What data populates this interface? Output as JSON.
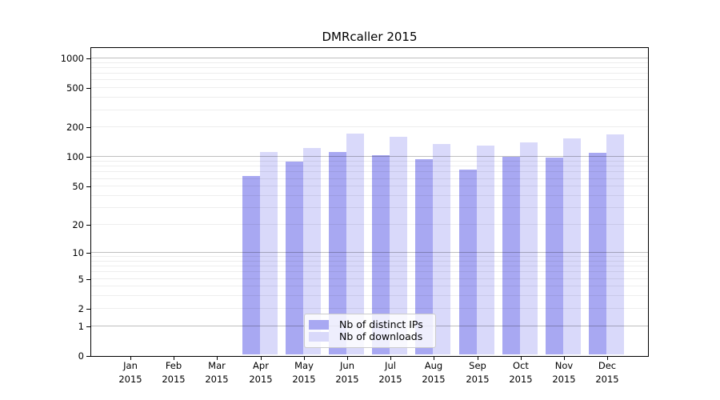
{
  "title": "DMRcaller 2015",
  "legend": {
    "items": [
      {
        "label": "Nb of distinct IPs",
        "color": "#a8a8f2"
      },
      {
        "label": "Nb of downloads",
        "color": "#d9d9fa"
      }
    ]
  },
  "chart_data": {
    "type": "bar",
    "title": "DMRcaller 2015",
    "categories": [
      "Jan 2015",
      "Feb 2015",
      "Mar 2015",
      "Apr 2015",
      "May 2015",
      "Jun 2015",
      "Jul 2015",
      "Aug 2015",
      "Sep 2015",
      "Oct 2015",
      "Nov 2015",
      "Dec 2015"
    ],
    "months": [
      "Jan",
      "Feb",
      "Mar",
      "Apr",
      "May",
      "Jun",
      "Jul",
      "Aug",
      "Sep",
      "Oct",
      "Nov",
      "Dec"
    ],
    "year": "2015",
    "series": [
      {
        "name": "Nb of distinct IPs",
        "color": "#a8a8f2",
        "values": [
          0,
          0,
          0,
          62,
          86,
          108,
          101,
          92,
          72,
          97,
          96,
          106
        ]
      },
      {
        "name": "Nb of downloads",
        "color": "#d9d9fa",
        "values": [
          0,
          0,
          0,
          108,
          119,
          168,
          154,
          130,
          127,
          137,
          149,
          164
        ]
      }
    ],
    "xlabel": "",
    "ylabel": "",
    "y_axis": {
      "scale": "log10(value+1)",
      "tick_values": [
        0,
        1,
        2,
        5,
        10,
        20,
        50,
        100,
        200,
        500,
        1000
      ],
      "tick_labels": [
        "0",
        "1",
        "2",
        "5",
        "10",
        "20",
        "50",
        "100",
        "200",
        "500",
        "1000"
      ],
      "top_value": 1270
    },
    "grid": {
      "orientation": "horizontal",
      "major_values": [
        1,
        10,
        100,
        1000
      ],
      "minor_values": [
        2,
        3,
        4,
        5,
        6,
        7,
        8,
        9,
        20,
        30,
        40,
        50,
        60,
        70,
        80,
        90,
        200,
        300,
        400,
        500,
        600,
        700,
        800,
        900
      ]
    },
    "legend_position": "lower center"
  },
  "colors": {
    "background": "#ffffff",
    "bar_ips": "#a8a8f2",
    "bar_downloads": "#d9d9fa",
    "axis": "#000000",
    "grid_major": "rgba(0,0,0,0.25)",
    "grid_minor": "rgba(0,0,0,0.07)",
    "text": "#000000",
    "legend_border": "#cccccc",
    "legend_background": "rgba(255,255,255,0.8)"
  }
}
